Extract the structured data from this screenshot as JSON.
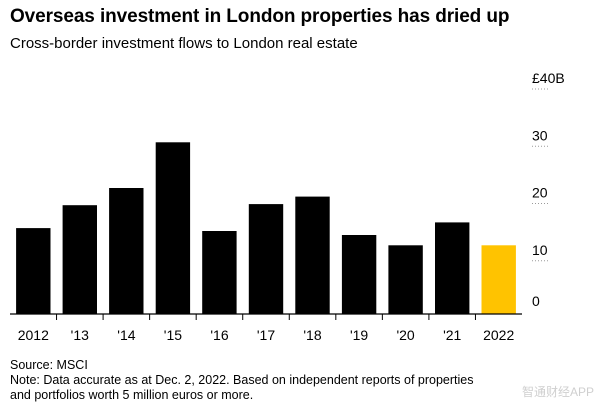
{
  "title": "Overseas investment in London properties has dried up",
  "subtitle": "Cross-border investment flows to London real estate",
  "chart_data": {
    "type": "bar",
    "title": "Overseas investment in London properties has dried up",
    "subtitle": "Cross-border investment flows to London real estate",
    "categories": [
      "2012",
      "'13",
      "'14",
      "'15",
      "'16",
      "'17",
      "'18",
      "'19",
      "'20",
      "'21",
      "2022"
    ],
    "values": [
      15,
      19,
      22,
      30,
      14.5,
      19.2,
      20.5,
      13.8,
      12,
      16,
      12
    ],
    "highlight_index": 10,
    "ylim": [
      0,
      40
    ],
    "yticks": [
      0,
      10,
      20,
      30,
      40
    ],
    "ytick_labels": [
      "0",
      "10",
      "20",
      "30",
      "£40B"
    ],
    "xlabel": "",
    "ylabel": "",
    "grid": false,
    "colors": {
      "bar": "#000000",
      "highlight": "#ffc300",
      "axis": "#000000",
      "dotted_grid": "#9a9a9a"
    }
  },
  "footer": {
    "source": "Source: MSCI",
    "note_line1": "Note: Data accurate as at Dec. 2, 2022. Based on independent reports of properties",
    "note_line2": "and portfolios worth 5 million euros or more."
  },
  "watermark": "智通财经APP"
}
